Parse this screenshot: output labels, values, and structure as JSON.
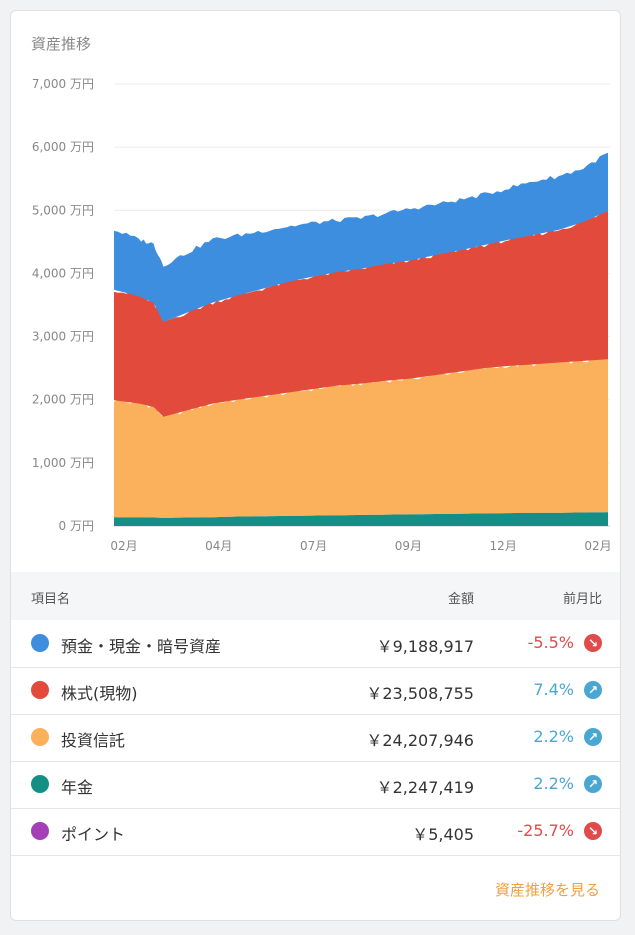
{
  "card": {
    "title": "資産推移"
  },
  "colors": {
    "deposit": "#3d8ede",
    "stocks": "#e24b3c",
    "funds": "#fbb05b",
    "pension": "#138f86",
    "points": "#a340b8",
    "down": "#e04b4b",
    "up": "#4aa7d2",
    "link": "#f0a040"
  },
  "chart_data": {
    "type": "area",
    "stacked": true,
    "title": "",
    "ylabel": "",
    "ylim": [
      0,
      7000
    ],
    "ytick_labels": [
      "0 万円",
      "1,000 万円",
      "2,000 万円",
      "3,000 万円",
      "4,000 万円",
      "5,000 万円",
      "6,000 万円",
      "7,000 万円"
    ],
    "yticks": [
      0,
      1000,
      2000,
      3000,
      4000,
      5000,
      6000,
      7000
    ],
    "xtick_labels": [
      "02月",
      "04月",
      "07月",
      "09月",
      "12月",
      "02月"
    ],
    "grid": true,
    "x": [
      0,
      5,
      8,
      10,
      15,
      20,
      25,
      30,
      35,
      40,
      45,
      50,
      55,
      60,
      65,
      70,
      75,
      80,
      85,
      90,
      95,
      100
    ],
    "series": [
      {
        "key": "pension",
        "values": [
          140,
          140,
          135,
          130,
          135,
          140,
          150,
          155,
          160,
          165,
          170,
          175,
          180,
          185,
          190,
          195,
          200,
          205,
          210,
          210,
          215,
          220
        ]
      },
      {
        "key": "funds",
        "values": [
          1850,
          1800,
          1750,
          1600,
          1700,
          1800,
          1850,
          1900,
          1950,
          2000,
          2050,
          2080,
          2120,
          2150,
          2200,
          2250,
          2300,
          2330,
          2350,
          2380,
          2400,
          2420
        ]
      },
      {
        "key": "stocks",
        "values": [
          1750,
          1700,
          1650,
          1500,
          1550,
          1600,
          1650,
          1700,
          1750,
          1780,
          1800,
          1820,
          1850,
          1870,
          1900,
          1920,
          1950,
          2000,
          2050,
          2100,
          2200,
          2350
        ]
      },
      {
        "key": "deposit",
        "values": [
          950,
          900,
          930,
          900,
          950,
          1000,
          950,
          920,
          880,
          850,
          820,
          800,
          800,
          820,
          800,
          800,
          800,
          820,
          850,
          850,
          850,
          920
        ]
      }
    ]
  },
  "table": {
    "headers": {
      "name": "項目名",
      "amount": "金額",
      "change": "前月比"
    },
    "rows": [
      {
        "key": "deposit",
        "name": "預金・現金・暗号資産",
        "amount": "￥9,188,917",
        "change": "-5.5%",
        "dir": "down"
      },
      {
        "key": "stocks",
        "name": "株式(現物)",
        "amount": "￥23,508,755",
        "change": "7.4%",
        "dir": "up"
      },
      {
        "key": "funds",
        "name": "投資信託",
        "amount": "￥24,207,946",
        "change": "2.2%",
        "dir": "up"
      },
      {
        "key": "pension",
        "name": "年金",
        "amount": "￥2,247,419",
        "change": "2.2%",
        "dir": "up"
      },
      {
        "key": "points",
        "name": "ポイント",
        "amount": "￥5,405",
        "change": "-25.7%",
        "dir": "down"
      }
    ]
  },
  "footer": {
    "link": "資産推移を見る"
  }
}
